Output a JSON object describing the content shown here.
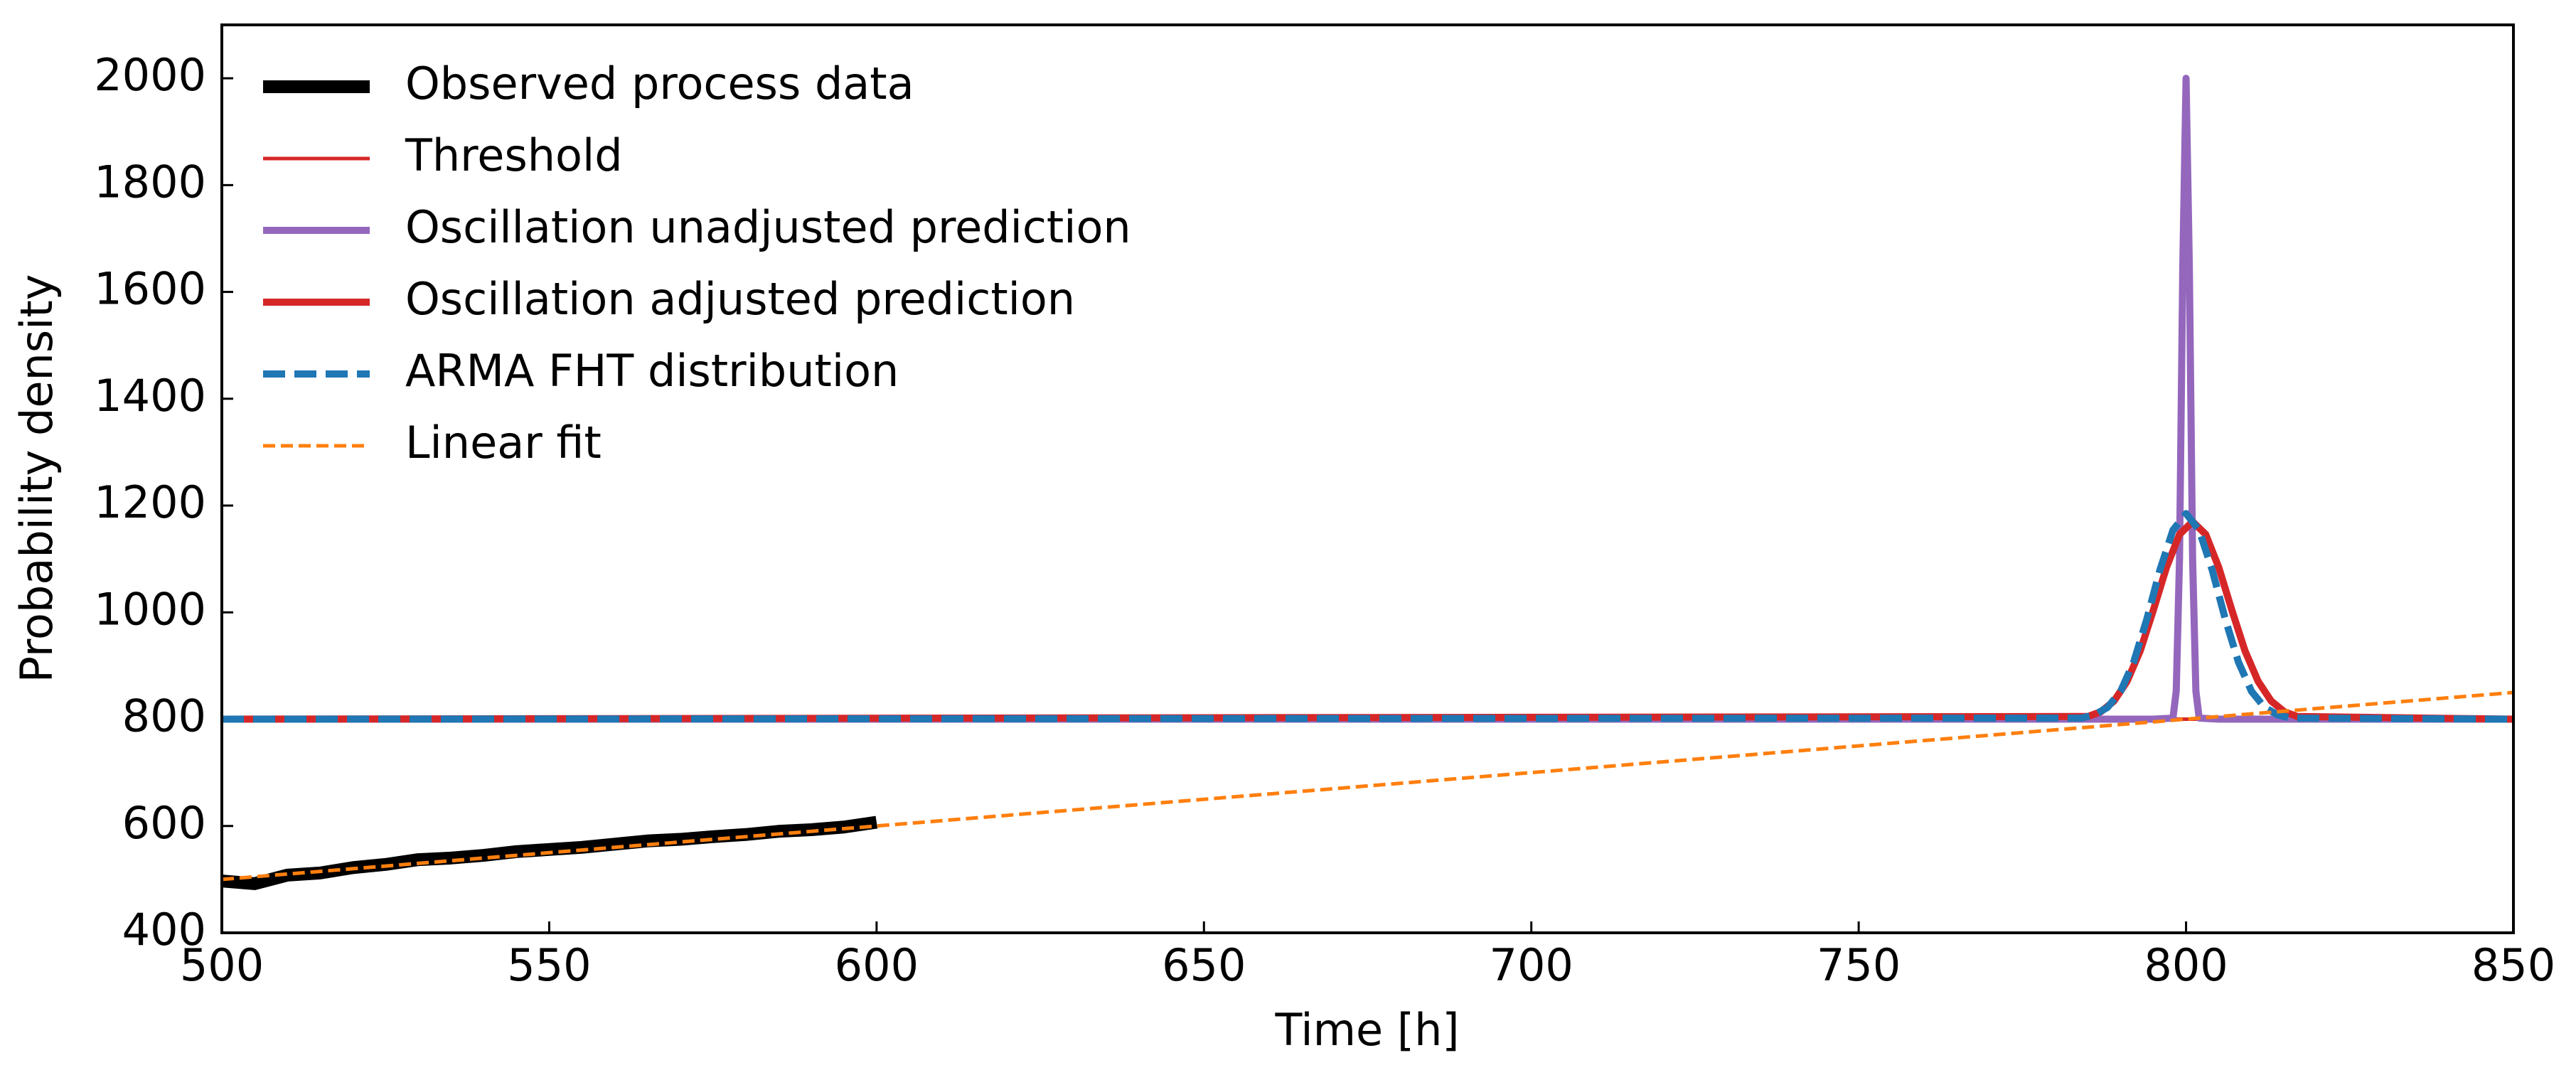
{
  "chart_data": {
    "type": "line",
    "x_label": "Time [h]",
    "y_label": "Probability density",
    "xlim": [
      500,
      850
    ],
    "ylim": [
      400,
      2100
    ],
    "xticks": [
      500,
      550,
      600,
      650,
      700,
      750,
      800,
      850
    ],
    "yticks": [
      400,
      600,
      800,
      1000,
      1200,
      1400,
      1600,
      1800,
      2000
    ],
    "legend": "upper left",
    "series": [
      {
        "name": "Observed process data",
        "color": "#000000",
        "linestyle": "solid",
        "x": [
          500,
          505,
          510,
          515,
          520,
          525,
          530,
          535,
          540,
          545,
          550,
          555,
          560,
          565,
          570,
          575,
          580,
          585,
          590,
          595,
          600
        ],
        "values": [
          497,
          492,
          508,
          512,
          522,
          528,
          537,
          540,
          545,
          552,
          556,
          560,
          566,
          572,
          575,
          580,
          584,
          590,
          593,
          598,
          607
        ]
      },
      {
        "name": "Threshold",
        "color": "#d62728",
        "linestyle": "solid",
        "x": [
          500,
          850
        ],
        "values": [
          800,
          800
        ]
      },
      {
        "name": "Oscillation unadjusted prediction",
        "color": "#9467bd",
        "linestyle": "solid",
        "x": [
          500,
          795,
          798,
          798.5,
          799,
          799.5,
          800,
          800.5,
          801,
          801.5,
          802,
          805,
          850
        ],
        "values": [
          800,
          800,
          802,
          853,
          1100,
          1648,
          2000,
          1648,
          1100,
          853,
          802,
          800,
          800
        ]
      },
      {
        "name": "Oscillation adjusted prediction",
        "color": "#d62728",
        "linestyle": "solid",
        "x": [
          500,
          785,
          787,
          789,
          791,
          793,
          795,
          797,
          799,
          801,
          803,
          805,
          807,
          809,
          811,
          813,
          815,
          817,
          850
        ],
        "values": [
          800,
          805,
          814,
          834,
          871,
          928,
          1004,
          1084,
          1146,
          1170,
          1146,
          1084,
          1004,
          928,
          871,
          834,
          814,
          805,
          800
        ]
      },
      {
        "name": "ARMA FHT distribution",
        "color": "#1f77b4",
        "linestyle": "dashed",
        "x": [
          500,
          784,
          786,
          788,
          790,
          792,
          794,
          796,
          798,
          800,
          802,
          804,
          806,
          808,
          810,
          812,
          814,
          816,
          850
        ],
        "values": [
          800,
          802,
          808,
          822,
          852,
          907,
          987,
          1079,
          1154,
          1185,
          1154,
          1079,
          987,
          907,
          852,
          822,
          808,
          802,
          800
        ]
      },
      {
        "name": "Linear fit",
        "color": "#ff7f0e",
        "linestyle": "dashed",
        "x": [
          500,
          850
        ],
        "values": [
          500,
          850
        ]
      }
    ]
  }
}
